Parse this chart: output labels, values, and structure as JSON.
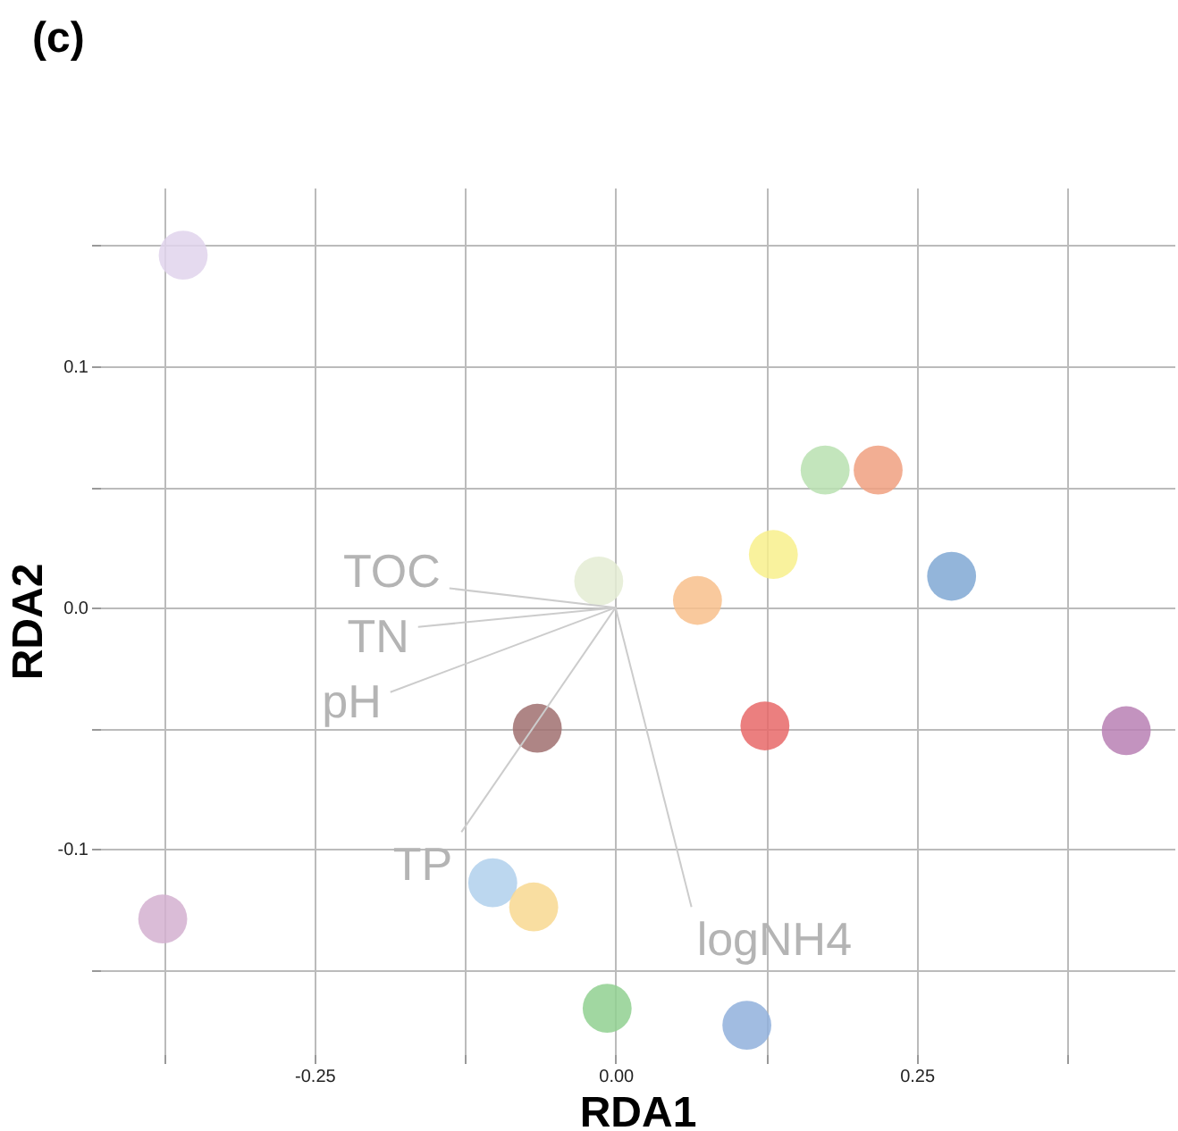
{
  "chart_data": {
    "type": "scatter",
    "title": "(c)",
    "xlabel": "RDA1",
    "ylabel": "RDA2",
    "series": [
      {
        "x": [
          -0.359,
          -0.376,
          -0.014,
          0.068,
          0.131,
          0.174,
          0.218,
          0.279,
          0.424,
          -0.065,
          0.124,
          -0.102,
          -0.068,
          -0.007,
          0.109
        ],
        "values": [
          0.146,
          -0.129,
          0.011,
          0.003,
          0.022,
          0.057,
          0.057,
          0.013,
          -0.051,
          -0.05,
          -0.049,
          -0.114,
          -0.124,
          -0.166,
          -0.173
        ],
        "colors": [
          "#e0d4ec",
          "#d4b0d0",
          "#e4ecd4",
          "#f8c08c",
          "#f8f08c",
          "#b8e0b0",
          "#f0a080",
          "#80a8d4",
          "#b880b4",
          "#a07070",
          "#e86868",
          "#b0d0ec",
          "#f8d890",
          "#90d090",
          "#90b0dc"
        ],
        "marker": "circle"
      },
      {
        "type": "line",
        "name": "TOC",
        "color": "#cccccc",
        "x": [
          0,
          -0.138
        ],
        "values": [
          0,
          0.008
        ]
      },
      {
        "type": "line",
        "name": "TN",
        "color": "#cccccc",
        "x": [
          0,
          -0.164
        ],
        "values": [
          0,
          -0.008
        ]
      },
      {
        "type": "line",
        "name": "pH",
        "color": "#cccccc",
        "x": [
          0,
          -0.187
        ],
        "values": [
          0,
          -0.035
        ]
      },
      {
        "type": "line",
        "name": "TP",
        "color": "#cccccc",
        "x": [
          0,
          -0.128
        ],
        "values": [
          0,
          -0.093
        ]
      },
      {
        "type": "line",
        "name": "logNH4",
        "color": "#cccccc",
        "x": [
          0,
          0.063
        ],
        "values": [
          0,
          -0.124
        ]
      }
    ],
    "xlim": [
      -0.428,
      0.464
    ],
    "ylim": [
      -0.185,
      0.174
    ],
    "xticks": [
      {
        "value": -0.375,
        "label": null
      },
      {
        "value": -0.25,
        "label": "-0.25"
      },
      {
        "value": -0.125,
        "label": null
      },
      {
        "value": 0,
        "label": "0.00"
      },
      {
        "value": 0.125,
        "label": null
      },
      {
        "value": 0.25,
        "label": "0.25"
      },
      {
        "value": 0.375,
        "label": null
      }
    ],
    "yticks": [
      {
        "value": -0.15,
        "label": null
      },
      {
        "value": -0.1,
        "label": "-0.1"
      },
      {
        "value": -0.05,
        "label": null
      },
      {
        "value": 0,
        "label": "0.0"
      },
      {
        "value": 0.05,
        "label": null
      },
      {
        "value": 0.1,
        "label": "0.1"
      },
      {
        "value": 0.15,
        "label": null
      }
    ],
    "grid": true
  }
}
